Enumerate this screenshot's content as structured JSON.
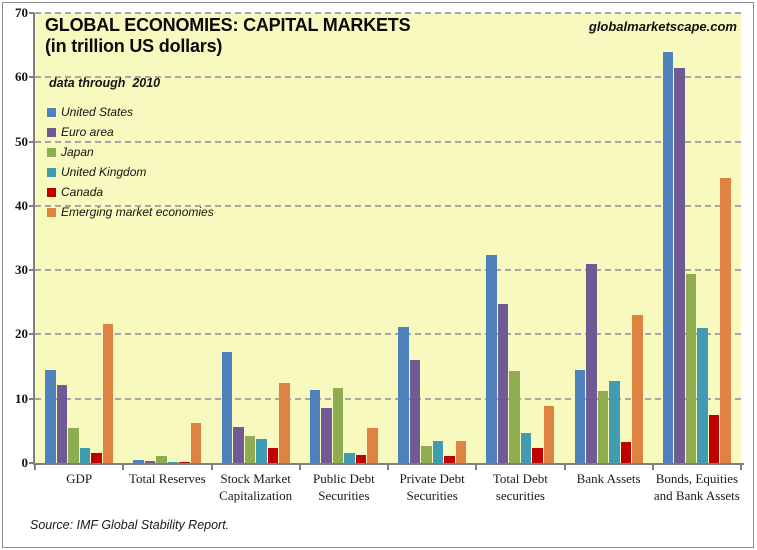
{
  "watermark": "globalmarketscape.com",
  "note": "data through  2010",
  "source": "Source: IMF Global Stability Report.",
  "colors": {
    "plot_bg": "#F8F9BE",
    "grid": "#8C8C9E",
    "axis": "#7F7F7F"
  },
  "chart_data": {
    "type": "bar",
    "title": "GLOBAL ECONOMIES: CAPITAL MARKETS",
    "subtitle": "(in trillion US dollars)",
    "ylabel": "",
    "xlabel": "",
    "ylim": [
      0,
      70
    ],
    "ytick_step": 10,
    "grid": "horizontal-dashed",
    "legend_position": "inside-top-left",
    "categories": [
      "GDP",
      "Total Reserves",
      "Stock Market Capitalization",
      "Public Debt Securities",
      "Private Debt Securities",
      "Total Debt securities",
      "Bank Assets",
      "Bonds, Equities and Bank Assets"
    ],
    "series": [
      {
        "name": "United States",
        "color": "#4F81BD",
        "values": [
          14.5,
          0.5,
          17.3,
          11.3,
          21.1,
          32.3,
          14.4,
          64.0
        ]
      },
      {
        "name": "Euro area",
        "color": "#705A94",
        "values": [
          12.2,
          0.3,
          5.6,
          8.6,
          16.1,
          24.8,
          30.9,
          61.4
        ]
      },
      {
        "name": "Japan",
        "color": "#8FAC50",
        "values": [
          5.5,
          1.1,
          4.2,
          11.7,
          2.7,
          14.3,
          11.2,
          29.4
        ]
      },
      {
        "name": "United Kingdom",
        "color": "#3F9CB2",
        "values": [
          2.3,
          0.1,
          3.7,
          1.5,
          3.5,
          4.7,
          12.7,
          21.0
        ]
      },
      {
        "name": "Canada",
        "color": "#C00000",
        "values": [
          1.6,
          0.2,
          2.3,
          1.2,
          1.1,
          2.3,
          3.3,
          7.4
        ]
      },
      {
        "name": "Emerging market economies",
        "color": "#DE8342",
        "values": [
          21.7,
          6.3,
          12.5,
          5.5,
          3.4,
          8.8,
          23.0,
          44.4
        ]
      }
    ]
  }
}
